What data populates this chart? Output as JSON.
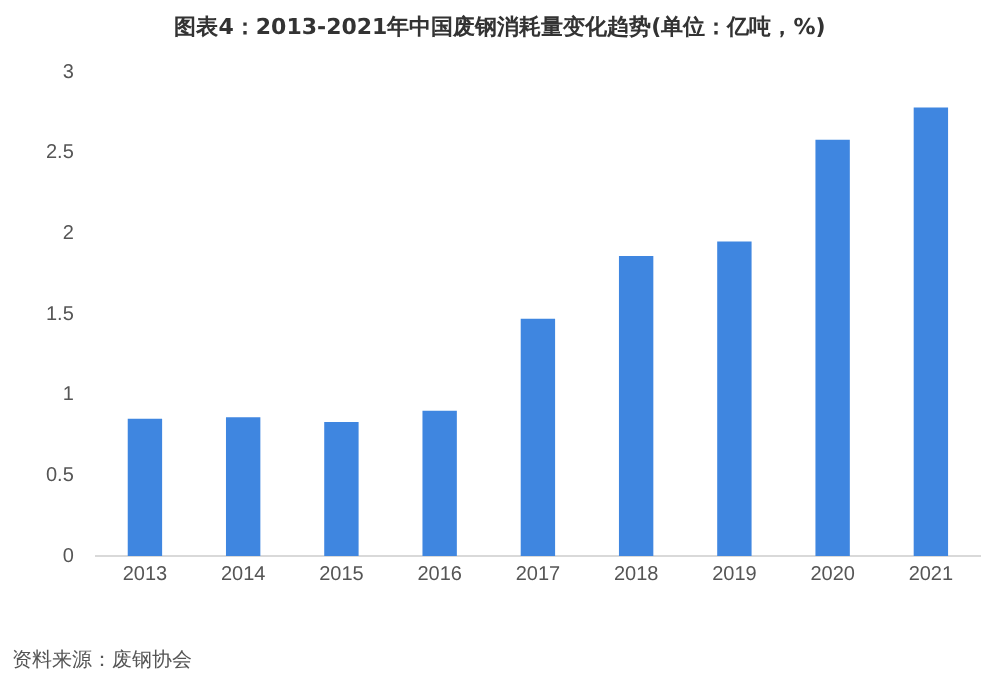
{
  "chart_data": {
    "type": "bar",
    "title": "图表4：2013-2021年中国废钢消耗量变化趋势(单位：亿吨，%)",
    "categories": [
      "2013",
      "2014",
      "2015",
      "2016",
      "2017",
      "2018",
      "2019",
      "2020",
      "2021"
    ],
    "values": [
      0.85,
      0.86,
      0.83,
      0.9,
      1.47,
      1.86,
      1.95,
      2.58,
      2.78
    ],
    "color": "#3f86e0",
    "ylim": [
      0,
      3
    ],
    "yticks": [
      0,
      0.5,
      1,
      1.5,
      2,
      2.5,
      3
    ],
    "grid": false,
    "annotations": [
      "资料来源：废钢协会"
    ]
  }
}
